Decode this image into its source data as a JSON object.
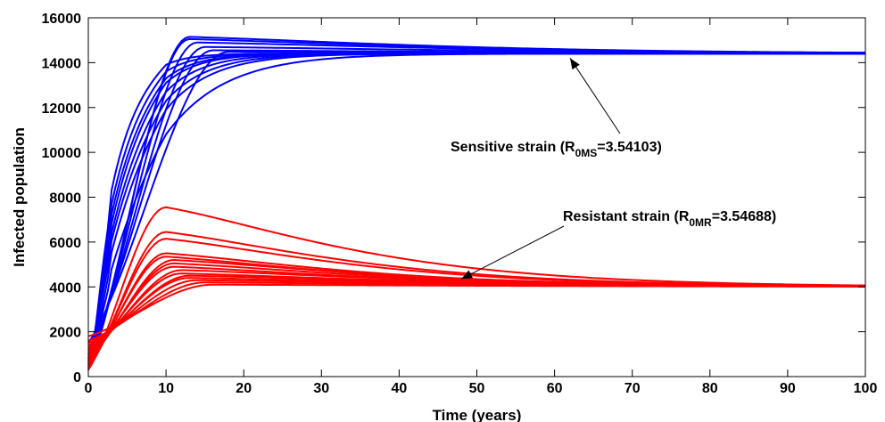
{
  "chart_data": {
    "type": "line",
    "title": "",
    "xlabel": "Time (years)",
    "ylabel": "Infected population",
    "xlim": [
      0,
      100
    ],
    "ylim": [
      0,
      16000
    ],
    "x_ticks": [
      0,
      10,
      20,
      30,
      40,
      50,
      60,
      70,
      80,
      90,
      100
    ],
    "y_ticks": [
      0,
      2000,
      4000,
      6000,
      8000,
      10000,
      12000,
      14000,
      16000
    ],
    "grid": false,
    "legend": "none",
    "colors": {
      "sensitive": "#0000ff",
      "resistant": "#ff0000"
    },
    "groups": [
      {
        "key": "sensitive",
        "color": "#0000ff",
        "equilibrium": 14400,
        "curves": [
          {
            "initial": 300,
            "peak": 15150,
            "peak_time": 13
          },
          {
            "initial": 500,
            "peak": 15050,
            "peak_time": 13
          },
          {
            "initial": 800,
            "peak": 14900,
            "peak_time": 14
          },
          {
            "initial": 1000,
            "peak": 14700,
            "peak_time": 15
          },
          {
            "initial": 1200,
            "peak": 14550,
            "peak_time": 16
          },
          {
            "initial": 1500,
            "peak": 14480,
            "peak_time": 18
          },
          {
            "initial": 400,
            "value_at_10": 13900,
            "tau": 9
          },
          {
            "initial": 600,
            "value_at_10": 13600,
            "tau": 10
          },
          {
            "initial": 800,
            "value_at_10": 13300,
            "tau": 11
          },
          {
            "initial": 500,
            "value_at_10": 13100,
            "tau": 12
          },
          {
            "initial": 700,
            "value_at_10": 12700,
            "tau": 13
          },
          {
            "initial": 900,
            "value_at_10": 12300,
            "tau": 14
          },
          {
            "initial": 600,
            "value_at_10": 11900,
            "tau": 15
          },
          {
            "initial": 800,
            "value_at_10": 10800,
            "tau": 17
          }
        ]
      },
      {
        "key": "resistant",
        "color": "#ff0000",
        "equilibrium": 4000,
        "curves": [
          {
            "initial": 300,
            "peak": 7550,
            "peak_time": 10
          },
          {
            "initial": 400,
            "peak": 6450,
            "peak_time": 10
          },
          {
            "initial": 500,
            "peak": 6150,
            "peak_time": 10
          },
          {
            "initial": 600,
            "peak": 5500,
            "peak_time": 10
          },
          {
            "initial": 700,
            "peak": 5350,
            "peak_time": 10
          },
          {
            "initial": 800,
            "peak": 5200,
            "peak_time": 11
          },
          {
            "initial": 900,
            "peak": 5050,
            "peak_time": 11
          },
          {
            "initial": 1000,
            "peak": 4900,
            "peak_time": 11
          },
          {
            "initial": 1100,
            "peak": 4750,
            "peak_time": 12
          },
          {
            "initial": 1200,
            "peak": 4600,
            "peak_time": 12
          },
          {
            "initial": 1300,
            "peak": 4500,
            "peak_time": 13
          },
          {
            "initial": 1400,
            "peak": 4400,
            "peak_time": 13
          },
          {
            "initial": 1500,
            "peak": 4300,
            "peak_time": 14
          },
          {
            "initial": 1600,
            "peak": 4200,
            "peak_time": 15
          },
          {
            "initial": 1800,
            "peak": 4100,
            "peak_time": 16
          }
        ]
      }
    ],
    "annotations": [
      {
        "key": "sensitive",
        "prefix": "Sensitive strain (R",
        "subscript": "0MS",
        "suffix": "=3.54103)",
        "arrow_to": [
          62,
          14200
        ]
      },
      {
        "key": "resistant",
        "prefix": "Resistant strain (R",
        "subscript": "0MR",
        "suffix": "=3.54688)",
        "arrow_to": [
          48,
          4350
        ]
      }
    ]
  }
}
